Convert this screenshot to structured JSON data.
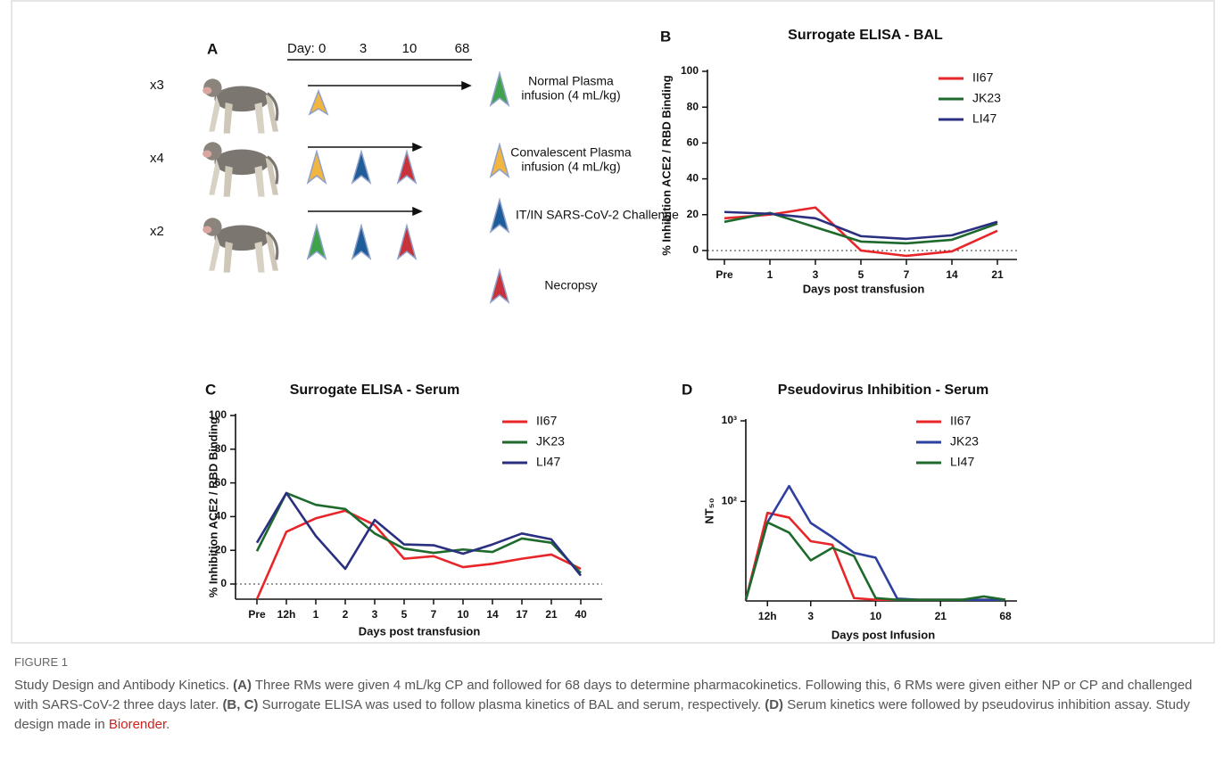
{
  "figure": {
    "label": "A",
    "day_label": "Day: 0",
    "days": [
      "3",
      "10",
      "68"
    ],
    "rows": [
      "x3",
      "x4",
      "x2"
    ],
    "legend": [
      [
        "Normal Plasma",
        "infusion (4 mL/kg)"
      ],
      [
        "Convalescent Plasma",
        "infusion (4 mL/kg)"
      ],
      [
        "IT/IN SARS-CoV-2 Challenge"
      ],
      [
        "Necropsy"
      ]
    ]
  },
  "chart_data": [
    {
      "type": "line",
      "label": "B",
      "title": "Surrogate ELISA - BAL",
      "x_label": "Days post transfusion",
      "y_label": "% Inhibition ACE2 / RBD Binding",
      "categories": [
        "Pre",
        "1",
        "3",
        "5",
        "7",
        "14",
        "21"
      ],
      "ylim": [
        -5,
        100
      ],
      "yticks": [
        0,
        20,
        40,
        60,
        80,
        100
      ],
      "zero_line": true,
      "legend": "top-right",
      "series": [
        {
          "name": "II67",
          "color": "#e8262a",
          "values": [
            18,
            20,
            24,
            0,
            -3,
            -0.5,
            11
          ]
        },
        {
          "name": "JK23",
          "color": "#1e6a2c",
          "values": [
            16,
            21,
            13,
            5,
            4,
            6,
            15
          ]
        },
        {
          "name": "LI47",
          "color": "#2b2f80",
          "values": [
            21.5,
            20.5,
            18,
            8,
            6.5,
            8.5,
            16
          ]
        }
      ]
    },
    {
      "type": "line",
      "label": "C",
      "title": "Surrogate ELISA - Serum",
      "x_label": "Days post transfusion",
      "y_label": "% Inhibition ACE2 / RBD Binding",
      "categories": [
        "Pre",
        "12h",
        "1",
        "2",
        "3",
        "5",
        "7",
        "10",
        "14",
        "17",
        "21",
        "40"
      ],
      "ylim": [
        -9,
        100
      ],
      "yticks": [
        0,
        20,
        40,
        60,
        80,
        100
      ],
      "zero_line": true,
      "legend": "top-right",
      "series": [
        {
          "name": "II67",
          "color": "#e8262a",
          "values": [
            -9,
            31,
            39,
            43.5,
            35,
            15,
            16.5,
            10,
            12,
            15,
            17.5,
            9
          ]
        },
        {
          "name": "JK23",
          "color": "#1e6a2c",
          "values": [
            19.5,
            54,
            47,
            44.5,
            30,
            21,
            18.5,
            20.5,
            19,
            27,
            24.5,
            6.5
          ]
        },
        {
          "name": "LI47",
          "color": "#2b2f80",
          "values": [
            24.5,
            54,
            28.5,
            9,
            38,
            23.5,
            23,
            18,
            23.5,
            30,
            26.5,
            5
          ]
        }
      ]
    },
    {
      "type": "line",
      "label": "D",
      "title": "Pseudovirus Inhibition - Serum",
      "x_label": "Days post Infusion",
      "y_label": "NT₅₀",
      "categories": [
        null,
        "12h",
        null,
        "3",
        null,
        null,
        "10",
        null,
        null,
        "21",
        null,
        null,
        "68"
      ],
      "ylim": [
        5.8,
        1000
      ],
      "log_scale": true,
      "yticks": [
        {
          "value": 100,
          "label": "10²"
        },
        {
          "value": 1000,
          "label": "10³"
        }
      ],
      "zero_line": false,
      "legend": "top-right",
      "series": [
        {
          "name": "II67",
          "color": "#e8262a",
          "values": [
            6,
            72,
            63,
            32,
            29,
            6.3,
            6,
            6,
            6,
            6,
            6,
            6,
            6
          ]
        },
        {
          "name": "JK23",
          "color": "#2e3fa0",
          "values": [
            6,
            55,
            155,
            54,
            36,
            23,
            20,
            6.2,
            6,
            6,
            6,
            6,
            6
          ]
        },
        {
          "name": "LI47",
          "color": "#1e6a2c",
          "values": [
            6,
            55,
            41,
            18.5,
            26.5,
            21,
            6.3,
            6,
            6,
            6,
            6,
            6.6,
            6
          ]
        }
      ]
    }
  ],
  "caption": {
    "label": "FIGURE 1",
    "segments": [
      {
        "text": "Study Design and Antibody Kinetics. "
      },
      {
        "text": "(A)",
        "bold": true
      },
      {
        "text": " Three RMs were given 4 mL/kg CP and followed for 68 days to determine pharmacokinetics. Following this, 6 RMs were given either NP or CP and challenged with SARS-CoV-2 three days later. "
      },
      {
        "text": "(B, C)",
        "bold": true
      },
      {
        "text": " Surrogate ELISA was used to follow plasma kinetics of BAL and serum, respectively. "
      },
      {
        "text": "(D)",
        "bold": true
      },
      {
        "text": " Serum kinetics were followed by pseudovirus inhibition assay. Study design made in "
      },
      {
        "text": "Biorender",
        "color": "#d0211c"
      },
      {
        "text": "."
      }
    ]
  }
}
